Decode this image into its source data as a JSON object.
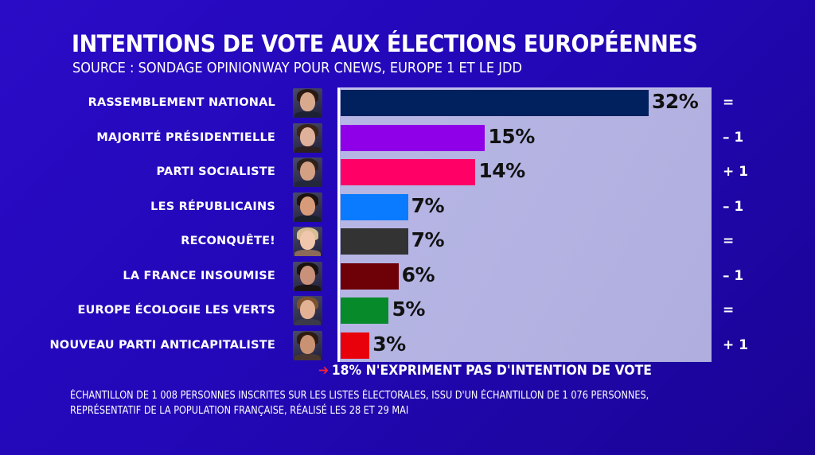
{
  "header": {
    "title": "INTENTIONS DE VOTE AUX ÉLECTIONS EUROPÉENNES",
    "subtitle": "SOURCE : SONDAGE OPINIONWAY POUR CNEWS, EUROPE 1 ET LE JDD"
  },
  "chart_data": {
    "type": "bar",
    "orientation": "horizontal",
    "title": "INTENTIONS DE VOTE AUX ÉLECTIONS EUROPÉENNES",
    "subtitle": "SOURCE : SONDAGE OPINIONWAY POUR CNEWS, EUROPE 1 ET LE JDD",
    "xlabel": "",
    "ylabel": "",
    "xlim": [
      0,
      35
    ],
    "grid": false,
    "legend": "none",
    "categories": [
      "RASSEMBLEMENT NATIONAL",
      "MAJORITÉ PRÉSIDENTIELLE",
      "PARTI SOCIALISTE",
      "LES RÉPUBLICAINS",
      "RECONQUÊTE!",
      "LA FRANCE INSOUMISE",
      "EUROPE ÉCOLOGIE LES VERTS",
      "NOUVEAU PARTI ANTICAPITALISTE"
    ],
    "values": [
      32,
      15,
      14,
      7,
      7,
      6,
      5,
      3
    ],
    "value_labels": [
      "32%",
      "15%",
      "14%",
      "7%",
      "7%",
      "6%",
      "5%",
      "3%"
    ],
    "changes": [
      "=",
      "– 1",
      "+ 1",
      "– 1",
      "=",
      "– 1",
      "=",
      "+ 1"
    ],
    "colors": [
      "#00215d",
      "#8f00e8",
      "#ff0066",
      "#0a7bff",
      "#333333",
      "#6e0008",
      "#078a2a",
      "#e8000a"
    ],
    "photo_tones": [
      {
        "skin": "#d9a98e",
        "hair": "#2a1a12",
        "body": "#1c2233"
      },
      {
        "skin": "#e0b19a",
        "hair": "#3b2318",
        "body": "#2b1f22"
      },
      {
        "skin": "#d4a084",
        "hair": "#2c221c",
        "body": "#23283a"
      },
      {
        "skin": "#d79b7a",
        "hair": "#1d130e",
        "body": "#1a1f2c"
      },
      {
        "skin": "#f0c7ad",
        "hair": "#d9be93",
        "body": "#8a6a58"
      },
      {
        "skin": "#c9917a",
        "hair": "#1a120e",
        "body": "#1b1414"
      },
      {
        "skin": "#e3b294",
        "hair": "#7a5230",
        "body": "#3a3a4a"
      },
      {
        "skin": "#c99273",
        "hair": "#2d1a10",
        "body": "#4a3630"
      }
    ]
  },
  "note": {
    "arrow": "➔",
    "text": "18% N'EXPRIMENT PAS D'INTENTION DE VOTE"
  },
  "footer": {
    "line1": "ÉCHANTILLON DE 1 008 PERSONNES INSCRITES SUR LES LISTES ÉLECTORALES, ISSU D'UN ÉCHANTILLON DE 1 076 PERSONNES,",
    "line2": "REPRÉSENTATIF DE LA POPULATION FRANÇAISE, RÉALISÉ LES 28 ET 29 MAI"
  }
}
